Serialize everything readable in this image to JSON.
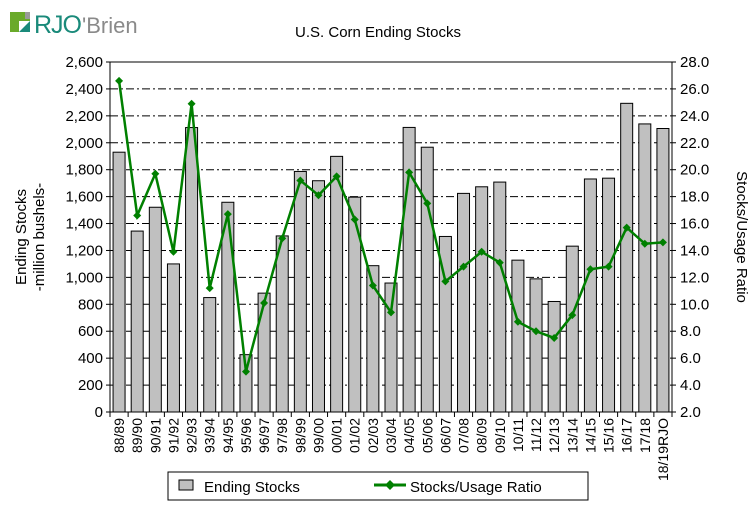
{
  "logo": {
    "text": "RJO'Brien",
    "colors": {
      "green": "#6aaa2a",
      "teal": "#1a8a7a",
      "gray": "#8a8a8a"
    }
  },
  "chart_data": {
    "type": "bar+line",
    "title": "U.S. Corn Ending Stocks",
    "ylabel": "Ending Stocks\n-million bushels-",
    "ylabel_lines": [
      "Ending Stocks",
      "-million bushels-"
    ],
    "y2label": "Stocks/Usage Ratio",
    "ylim": [
      0,
      2600
    ],
    "y2lim": [
      2.0,
      28.0
    ],
    "yticks": [
      "0",
      "200",
      "400",
      "600",
      "800",
      "1,000",
      "1,200",
      "1,400",
      "1,600",
      "1,800",
      "2,000",
      "2,200",
      "2,400",
      "2,600"
    ],
    "y2ticks": [
      "2.0",
      "4.0",
      "6.0",
      "8.0",
      "10.0",
      "12.0",
      "14.0",
      "16.0",
      "18.0",
      "20.0",
      "22.0",
      "24.0",
      "26.0",
      "28.0"
    ],
    "grid": "horizontal dash-dot",
    "legend_position": "bottom",
    "categories": [
      "88/89",
      "89/90",
      "90/91",
      "91/92",
      "92/93",
      "93/94",
      "94/95",
      "95/96",
      "96/97",
      "97/98",
      "98/99",
      "99/00",
      "00/01",
      "01/02",
      "02/03",
      "03/04",
      "04/05",
      "05/06",
      "06/07",
      "07/08",
      "08/09",
      "09/10",
      "10/11",
      "11/12",
      "12/13",
      "13/14",
      "14/15",
      "15/16",
      "16/17",
      "17/18",
      "18/19RJO"
    ],
    "series": [
      {
        "name": "Ending Stocks",
        "type": "bar",
        "axis": "left",
        "color": "#c0c0c0",
        "values": [
          1930,
          1344,
          1521,
          1100,
          2113,
          850,
          1558,
          426,
          883,
          1308,
          1787,
          1718,
          1899,
          1596,
          1087,
          958,
          2114,
          1967,
          1304,
          1624,
          1673,
          1708,
          1128,
          989,
          821,
          1232,
          1731,
          1737,
          2293,
          2140,
          2106
        ]
      },
      {
        "name": "Stocks/Usage Ratio",
        "type": "line",
        "axis": "right",
        "color": "#008000",
        "values": [
          26.6,
          16.6,
          19.7,
          13.9,
          24.9,
          11.2,
          16.7,
          5.0,
          10.1,
          14.9,
          19.2,
          18.1,
          19.5,
          16.3,
          11.4,
          9.4,
          19.8,
          17.5,
          11.7,
          12.8,
          13.9,
          13.1,
          8.7,
          8.0,
          7.5,
          9.2,
          12.6,
          12.8,
          15.7,
          14.5,
          14.6
        ]
      }
    ]
  }
}
